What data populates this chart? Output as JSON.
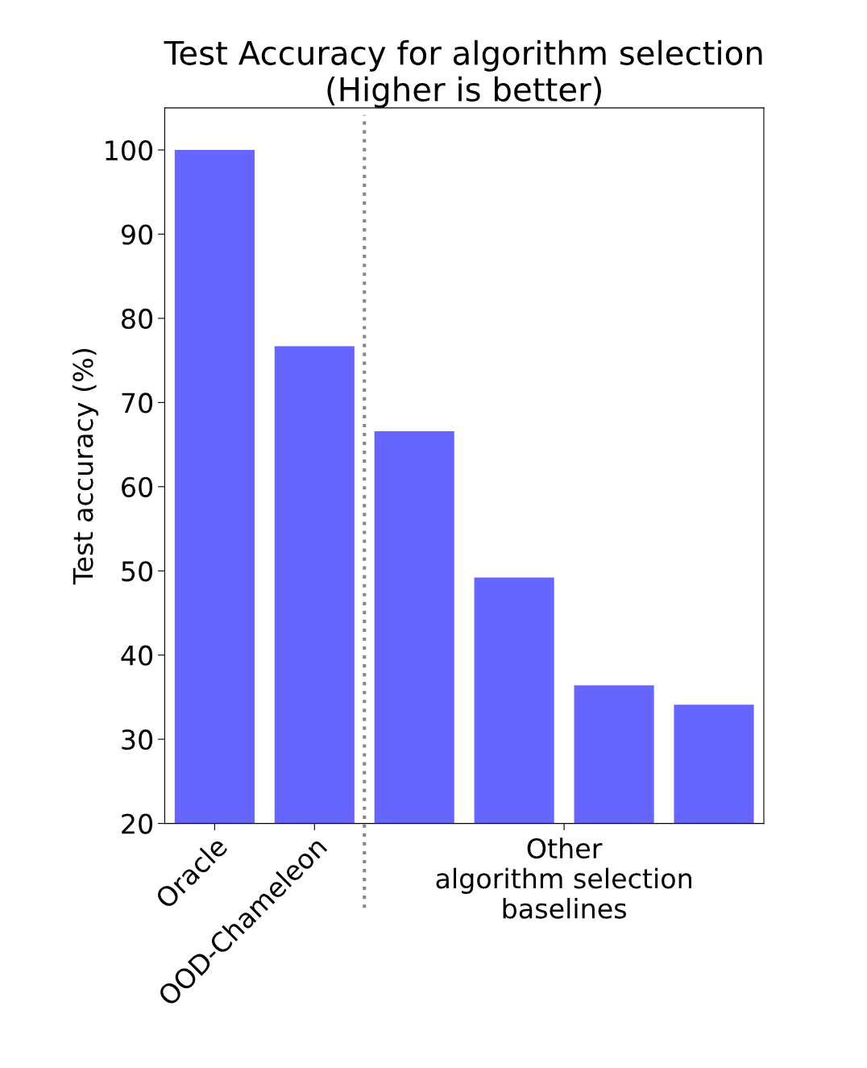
{
  "chart_data": {
    "type": "bar",
    "title": "Test Accuracy for algorithm selection\n(Higher is better)",
    "ylabel": "Test accuracy (%)",
    "categories": [
      "Oracle",
      "OOD-Chameleon",
      null,
      null,
      null,
      null
    ],
    "values": [
      100,
      76.7,
      66.6,
      49.2,
      36.4,
      34.1
    ],
    "color": "#6666ff",
    "ylim": [
      20,
      105
    ],
    "yticks": [
      20,
      30,
      40,
      50,
      60,
      70,
      80,
      90,
      100
    ],
    "grid": false,
    "annotations": [
      "Other\nalgorithm selection\nbaselines"
    ]
  }
}
